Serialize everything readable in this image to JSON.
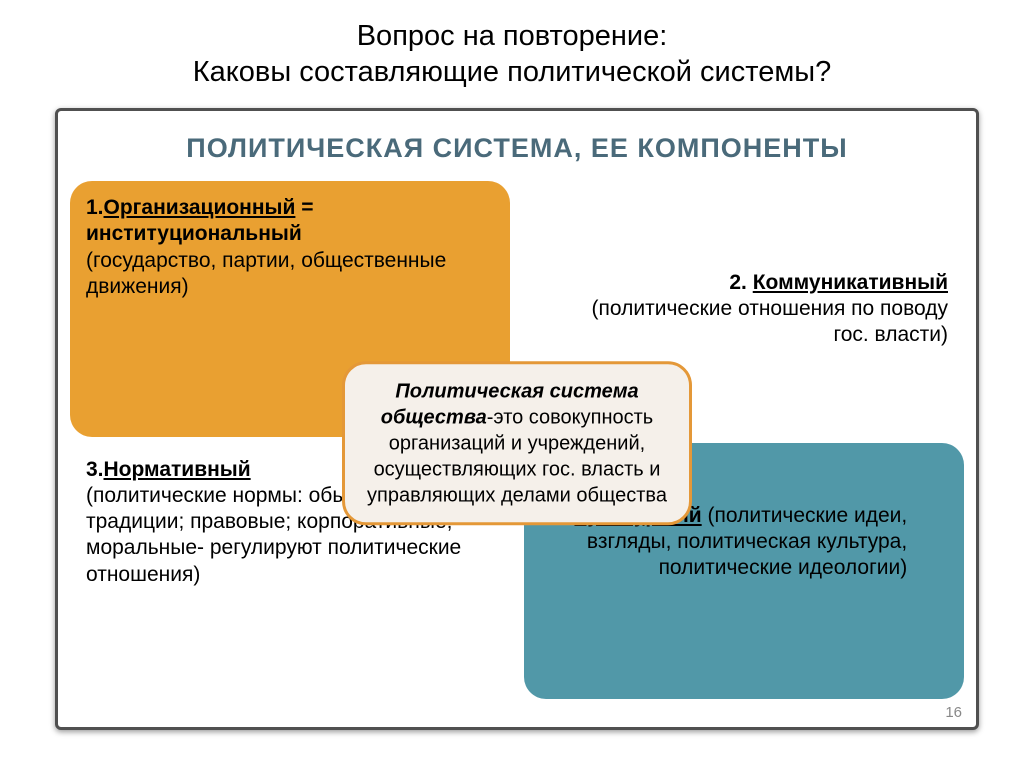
{
  "slide": {
    "title_l1": "Вопрос на повторение:",
    "title_l2": "Каковы составляющие политической системы?",
    "title_fontsize": 29,
    "title_color": "#000000"
  },
  "frame": {
    "title": "ПОЛИТИЧЕСКАЯ СИСТЕМА, ЕЕ КОМПОНЕНТЫ",
    "title_color": "#4a6a7a",
    "title_fontsize": 27,
    "border_color": "#505050",
    "background": "#ffffff",
    "page_number": "16"
  },
  "layout": {
    "type": "infographic",
    "structure": "2x2-quadrants-with-center-box",
    "quad_border_radius": 22,
    "quad_fontsize": 21,
    "center_fontsize": 20
  },
  "quads": {
    "tl": {
      "bg_color": "#e9a031",
      "text_color": "#000000",
      "num": "1.",
      "key": "Организационный",
      "eq": " = институциональный",
      "desc": "(государство, партии, общественные движения)"
    },
    "tr": {
      "bg_color": "#ffffff",
      "text_color": "#000000",
      "num": "2. ",
      "key": "Коммуникативный",
      "desc": "(политические отношения по поводу гос. власти)"
    },
    "bl": {
      "bg_color": "#ffffff",
      "text_color": "#000000",
      "num": "3.",
      "key": "Нормативный",
      "desc": "(политические нормы: обычаи и традиции; правовые; корпоративные; моральные- регулируют политические отношения)"
    },
    "br": {
      "bg_color": "#5198a8",
      "text_color": "#000000",
      "num": "4.",
      "key": "Культурный",
      "desc_after": " (политические идеи, взгляды, политическая культура, политические идеологии)"
    }
  },
  "center": {
    "bg_color": "#f5f0ea",
    "border_color": "#e49838",
    "lead": "Политическая система общества",
    "rest": "-это совокупность организаций и учреждений, осуществляющих гос. власть и управляющих делами общества"
  }
}
